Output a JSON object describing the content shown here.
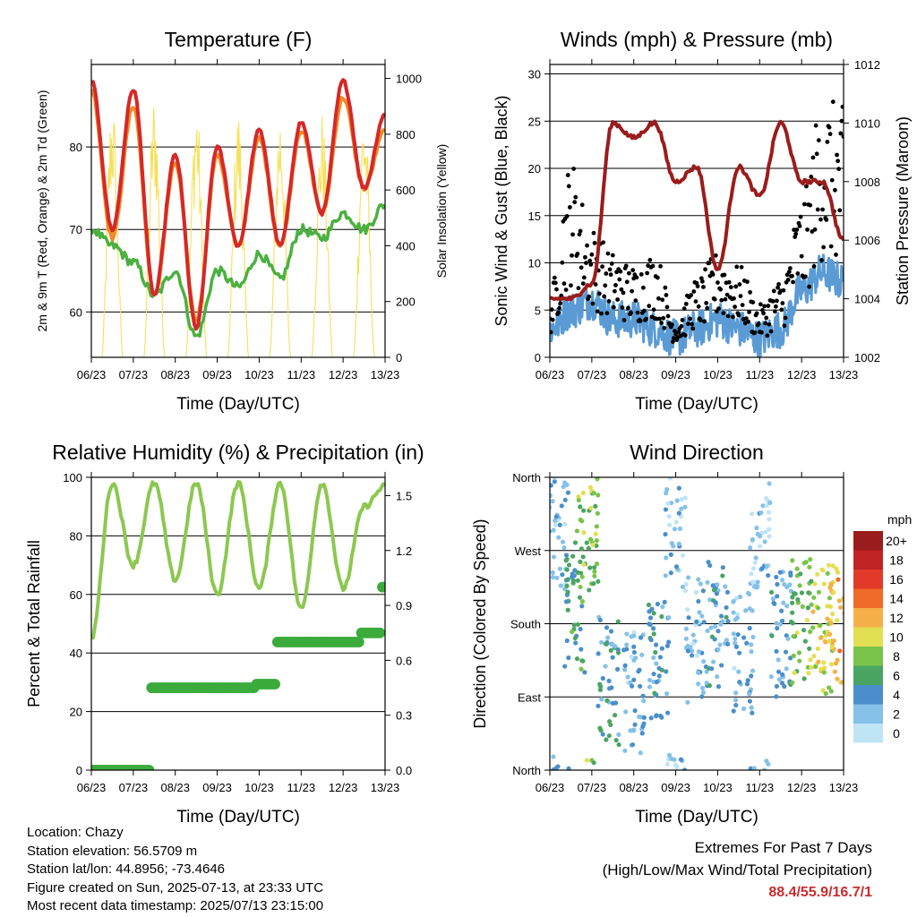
{
  "x_ticks": [
    "06/23",
    "07/23",
    "08/23",
    "09/23",
    "10/23",
    "11/23",
    "12/23",
    "13/23"
  ],
  "x_label": "Time (Day/UTC)",
  "chart_data": [
    {
      "type": "line",
      "title": "Temperature (F)",
      "xlabel": "Time (Day/UTC)",
      "ylabel": "2m & 9m T (Red, Orange) & 2m Td (Green)",
      "y2label": "Solar Insolation (Yellow)",
      "ylim": [
        54.5,
        90
      ],
      "y2lim": [
        0,
        1050
      ],
      "yticks": [
        60,
        70,
        80
      ],
      "y2ticks": [
        0,
        200,
        400,
        600,
        800,
        1000
      ],
      "x": [
        0,
        0.5,
        1,
        1.5,
        2,
        2.5,
        3,
        3.5,
        4,
        4.5,
        5,
        5.5,
        6,
        6.5,
        7
      ],
      "series": [
        {
          "name": "2m T",
          "color": "#d62828",
          "values": [
            88,
            70,
            87,
            62,
            79,
            58,
            80,
            68,
            82,
            68,
            83,
            72,
            88,
            75,
            84
          ]
        },
        {
          "name": "9m T",
          "color": "#f08a24",
          "values": [
            87,
            69,
            85,
            62,
            78,
            59,
            79,
            68,
            81,
            68,
            82,
            72,
            86,
            75,
            82
          ]
        },
        {
          "name": "2m Td",
          "color": "#4cb040",
          "values": [
            70,
            68,
            66,
            62,
            65,
            57,
            65,
            63,
            67,
            64,
            70,
            69,
            72,
            70,
            73
          ]
        },
        {
          "name": "Solar Insolation",
          "color": "#f5e05a",
          "axis": "right",
          "values": [
            0,
            950,
            0,
            960,
            0,
            950,
            0,
            900,
            0,
            920,
            0,
            890,
            0,
            930,
            0
          ]
        }
      ]
    },
    {
      "type": "line",
      "title": "Winds (mph) & Pressure (mb)",
      "xlabel": "Time (Day/UTC)",
      "ylabel": "Sonic Wind & Gust (Blue, Black)",
      "y2label": "Station Pressure (Maroon)",
      "ylim": [
        0,
        31
      ],
      "y2lim": [
        1002,
        1012
      ],
      "yticks": [
        0,
        5,
        10,
        15,
        20,
        25,
        30
      ],
      "y2ticks": [
        1002,
        1004,
        1006,
        1008,
        1010,
        1012
      ],
      "x": [
        0,
        0.5,
        1,
        1.5,
        2,
        2.5,
        3,
        3.5,
        4,
        4.5,
        5,
        5.5,
        6,
        6.5,
        7
      ],
      "series": [
        {
          "name": "Sonic Wind",
          "color": "#5b9bd5",
          "values": [
            3,
            5,
            6,
            4,
            4,
            3,
            2,
            3,
            4,
            3,
            2,
            3,
            7,
            9,
            8
          ]
        },
        {
          "name": "Gust",
          "color": "#000000",
          "values": [
            5,
            15,
            10,
            8,
            7,
            8,
            3,
            6,
            8,
            7,
            4,
            6,
            12,
            20,
            19
          ]
        },
        {
          "name": "Station Pressure",
          "color": "#9b1c1c",
          "axis": "right",
          "values": [
            1004,
            1004,
            1004.5,
            1010,
            1009.5,
            1010,
            1008,
            1008.5,
            1005,
            1008.5,
            1007.5,
            1010,
            1008,
            1008,
            1006
          ]
        }
      ]
    },
    {
      "type": "line",
      "title": "Relative Humidity (%) & Precipitation (in)",
      "xlabel": "Time (Day/UTC)",
      "ylabel": "Percent & Total Rainfall",
      "ylim": [
        0,
        100
      ],
      "y2lim": [
        0,
        1.6
      ],
      "yticks": [
        0,
        20,
        40,
        60,
        80,
        100
      ],
      "y2ticks": [
        "0.0",
        "0.3",
        "0.6",
        "0.9",
        "1.2",
        "1.5"
      ],
      "x": [
        0,
        0.5,
        1,
        1.5,
        2,
        2.5,
        3,
        3.5,
        4,
        4.5,
        5,
        5.5,
        6,
        6.5,
        7
      ],
      "series": [
        {
          "name": "Relative Humidity",
          "color": "#8cc850",
          "values": [
            45,
            98,
            70,
            98,
            65,
            98,
            60,
            98,
            62,
            98,
            55,
            98,
            62,
            90,
            97
          ]
        },
        {
          "name": "Total Precipitation",
          "color": "#3bab3b",
          "axis": "right",
          "values": [
            0,
            0,
            0,
            0.45,
            0.45,
            0.45,
            0.45,
            0.45,
            0.47,
            0.7,
            0.7,
            0.7,
            0.7,
            0.75,
            1.0
          ]
        }
      ]
    },
    {
      "type": "scatter",
      "title": "Wind Direction",
      "xlabel": "Time (Day/UTC)",
      "ylabel": "Direction (Colored By Speed)",
      "ylim": [
        0,
        360
      ],
      "ytick_labels": [
        "North",
        "East",
        "South",
        "West",
        "North"
      ],
      "legend_title": "mph",
      "legend_labels": [
        "0",
        "2",
        "4",
        "6",
        "8",
        "10",
        "12",
        "14",
        "16",
        "18",
        "20+"
      ],
      "legend_colors": [
        "#bfe4f6",
        "#85c1e8",
        "#4a8fcb",
        "#4aa563",
        "#78c44a",
        "#e3df52",
        "#f6b049",
        "#f06a2a",
        "#e23a2a",
        "#c02424",
        "#9b1c1c"
      ],
      "x": [
        0.2,
        0.6,
        0.9,
        1.4,
        2.0,
        2.6,
        3.0,
        3.5,
        4.0,
        4.6,
        5.0,
        5.5,
        6.0,
        6.5,
        6.9
      ],
      "values": [
        300,
        200,
        300,
        110,
        90,
        130,
        300,
        160,
        180,
        150,
        300,
        170,
        180,
        170,
        180
      ],
      "speed": [
        3,
        6,
        8,
        5,
        3,
        4,
        2,
        3,
        4,
        3,
        2,
        4,
        8,
        10,
        12
      ]
    }
  ],
  "info": {
    "location": "Location: Chazy",
    "elevation": "Station elevation: 56.5709 m",
    "latlon": "Station lat/lon: 44.8956; -73.4646",
    "created": "Figure created on Sun, 2025-07-13, at 23:33 UTC",
    "recent": "Most recent data timestamp: 2025/07/13 23:15:00"
  },
  "extremes": {
    "title": "Extremes For Past 7 Days",
    "subtitle": "(High/Low/Max Wind/Total Precipitation)",
    "values": "88.4/55.9/16.7/1"
  }
}
